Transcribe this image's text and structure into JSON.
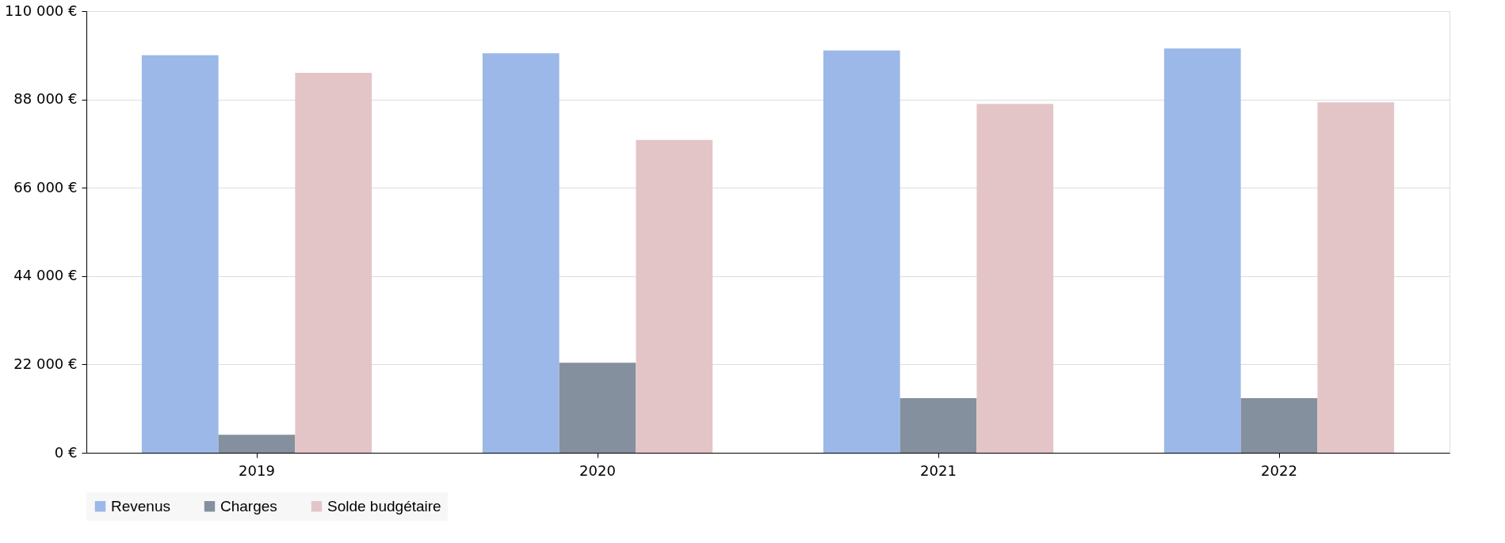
{
  "chart_data": {
    "type": "bar",
    "categories": [
      "2019",
      "2020",
      "2021",
      "2022"
    ],
    "series": [
      {
        "name": "Revenus",
        "color": "#9bb8e8",
        "values": [
          99000,
          99500,
          100200,
          100700
        ]
      },
      {
        "name": "Charges",
        "color": "#84909e",
        "values": [
          4500,
          22400,
          13600,
          13600
        ]
      },
      {
        "name": "Solde budgétaire",
        "color": "#e4c5c7",
        "values": [
          94600,
          77900,
          86900,
          87300
        ]
      }
    ],
    "ylim": [
      0,
      110000
    ],
    "yticks": [
      {
        "value": 0,
        "label": "0 €"
      },
      {
        "value": 22000,
        "label": "22 000 €"
      },
      {
        "value": 44000,
        "label": "44 000 €"
      },
      {
        "value": 66000,
        "label": "66 000 €"
      },
      {
        "value": 88000,
        "label": "88 000 €"
      },
      {
        "value": 110000,
        "label": "110 000 €"
      }
    ],
    "grid": "y",
    "legend": "bottom"
  }
}
